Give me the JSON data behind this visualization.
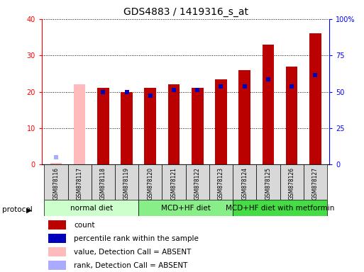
{
  "title": "GDS4883 / 1419316_s_at",
  "samples": [
    "GSM878116",
    "GSM878117",
    "GSM878118",
    "GSM878119",
    "GSM878120",
    "GSM878121",
    "GSM878122",
    "GSM878123",
    "GSM878124",
    "GSM878125",
    "GSM878126",
    "GSM878127"
  ],
  "count_values": [
    0.5,
    22.0,
    21.0,
    20.0,
    21.0,
    22.0,
    21.0,
    23.5,
    26.0,
    33.0,
    27.0,
    36.0
  ],
  "percentile_values": [
    2.0,
    null,
    20.0,
    20.0,
    19.0,
    20.5,
    20.5,
    21.5,
    21.5,
    23.5,
    21.5,
    24.5
  ],
  "absent_flags": [
    true,
    true,
    false,
    false,
    false,
    false,
    false,
    false,
    false,
    false,
    false,
    false
  ],
  "bar_color_present": "#bb0000",
  "bar_color_absent": "#ffbbbb",
  "dot_color_present": "#0000bb",
  "dot_color_absent": "#aaaaff",
  "ylim_left": [
    0,
    40
  ],
  "ylim_right": [
    0,
    100
  ],
  "yticks_left": [
    0,
    10,
    20,
    30,
    40
  ],
  "yticks_right": [
    0,
    25,
    50,
    75,
    100
  ],
  "yticklabels_right": [
    "0",
    "25",
    "50",
    "75",
    "100%"
  ],
  "protocols": [
    {
      "label": "normal diet",
      "start": 0,
      "end": 3,
      "color": "#ccffcc"
    },
    {
      "label": "MCD+HF diet",
      "start": 4,
      "end": 7,
      "color": "#88ee88"
    },
    {
      "label": "MCD+HF diet with metformin",
      "start": 8,
      "end": 11,
      "color": "#44dd44"
    }
  ],
  "protocol_label": "protocol",
  "legend_items": [
    {
      "label": "count",
      "color": "#bb0000"
    },
    {
      "label": "percentile rank within the sample",
      "color": "#0000bb"
    },
    {
      "label": "value, Detection Call = ABSENT",
      "color": "#ffbbbb"
    },
    {
      "label": "rank, Detection Call = ABSENT",
      "color": "#aaaaff"
    }
  ],
  "bar_width": 0.5,
  "dot_size": 18,
  "title_fontsize": 10,
  "tick_fontsize": 7,
  "legend_fontsize": 7.5,
  "protocol_fontsize": 7.5,
  "sample_fontsize": 5.5
}
